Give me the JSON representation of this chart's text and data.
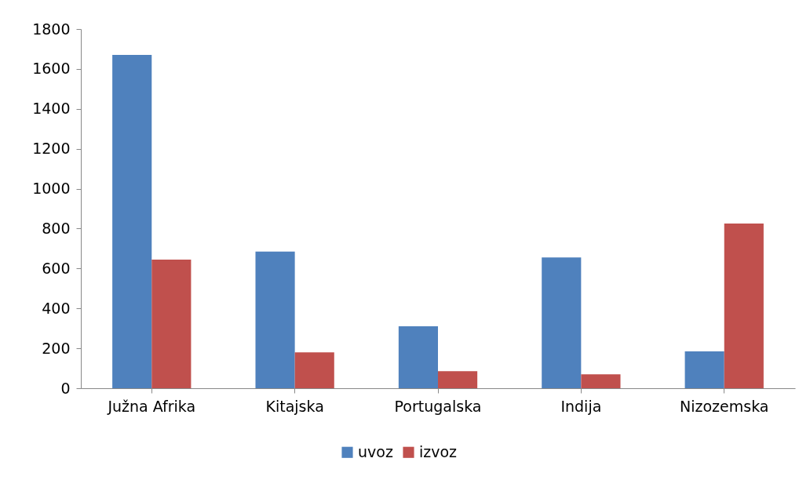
{
  "chart_data": {
    "type": "bar",
    "categories": [
      "Južna Afrika",
      "Kitajska",
      "Portugalska",
      "Indija",
      "Nizozemska"
    ],
    "series": [
      {
        "name": "uvoz",
        "color": "#4f81bd",
        "values": [
          1670,
          685,
          310,
          655,
          185
        ]
      },
      {
        "name": "izvoz",
        "color": "#c0504d",
        "values": [
          645,
          180,
          85,
          70,
          825
        ]
      }
    ],
    "ylim": [
      0,
      1800
    ],
    "yticks": [
      0,
      200,
      400,
      600,
      800,
      1000,
      1200,
      1400,
      1600,
      1800
    ],
    "grid": false,
    "legend": "bottom"
  }
}
